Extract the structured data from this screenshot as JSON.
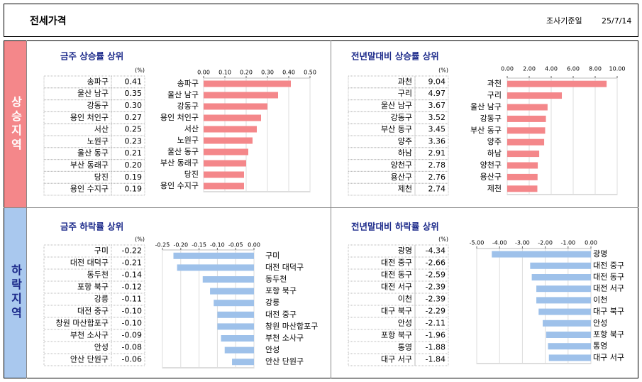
{
  "header": {
    "title": "전세가격",
    "date_label": "조사기준일",
    "date": "25/7/14"
  },
  "sections": [
    "상승지역",
    "하락지역"
  ],
  "chart_data": [
    {
      "type": "bar",
      "title": "금주 상승률 상위",
      "unit": "(%)",
      "color": "#f4878a",
      "categories": [
        "송파구",
        "울산 남구",
        "강동구",
        "용인 처인구",
        "서산",
        "노원구",
        "울산 동구",
        "부산 동래구",
        "당진",
        "용인 수지구"
      ],
      "values": [
        0.41,
        0.35,
        0.3,
        0.27,
        0.25,
        0.23,
        0.21,
        0.2,
        0.19,
        0.19
      ],
      "value_labels": [
        "0.41",
        "0.35",
        "0.30",
        "0.27",
        "0.25",
        "0.23",
        "0.21",
        "0.20",
        "0.19",
        "0.19"
      ],
      "xlim": [
        0,
        0.5
      ],
      "xticks": [
        {
          "value": 0,
          "label": "0.00"
        },
        {
          "value": 0.1,
          "label": "0.10"
        },
        {
          "value": 0.2,
          "label": "0.20"
        },
        {
          "value": 0.3,
          "label": "0.30"
        },
        {
          "value": 0.4,
          "label": "0.40"
        },
        {
          "value": 0.5,
          "label": "0.50"
        }
      ],
      "grid": true
    },
    {
      "type": "bar",
      "title": "전년말대비 상승률 상위",
      "unit": "(%)",
      "color": "#f4878a",
      "categories": [
        "과천",
        "구리",
        "울산 남구",
        "강동구",
        "부산 동구",
        "양주",
        "하남",
        "양천구",
        "용산구",
        "제천"
      ],
      "values": [
        9.04,
        4.97,
        3.67,
        3.52,
        3.45,
        3.36,
        2.91,
        2.78,
        2.76,
        2.74
      ],
      "value_labels": [
        "9.04",
        "4.97",
        "3.67",
        "3.52",
        "3.45",
        "3.36",
        "2.91",
        "2.78",
        "2.76",
        "2.74"
      ],
      "xlim": [
        0,
        10
      ],
      "xticks": [
        {
          "value": 0,
          "label": "0.00"
        },
        {
          "value": 2,
          "label": "2.00"
        },
        {
          "value": 4,
          "label": "4.00"
        },
        {
          "value": 6,
          "label": "6.00"
        },
        {
          "value": 8,
          "label": "8.00"
        },
        {
          "value": 10,
          "label": "10.00"
        }
      ],
      "grid": true
    },
    {
      "type": "bar",
      "title": "금주 하락률 상위",
      "unit": "(%)",
      "color": "#9ec1ea",
      "categories": [
        "구미",
        "대전 대덕구",
        "동두천",
        "포항 북구",
        "강릉",
        "대전 중구",
        "창원 마산합포구",
        "부천 소사구",
        "안성",
        "안산 단원구"
      ],
      "values": [
        -0.22,
        -0.21,
        -0.14,
        -0.12,
        -0.11,
        -0.1,
        -0.1,
        -0.09,
        -0.08,
        -0.06
      ],
      "value_labels": [
        "-0.22",
        "-0.21",
        "-0.14",
        "-0.12",
        "-0.11",
        "-0.10",
        "-0.10",
        "-0.09",
        "-0.08",
        "-0.06"
      ],
      "xlim": [
        -0.25,
        0
      ],
      "xticks": [
        -0.25,
        {
          "value": -0.2,
          "label": "-0.20"
        },
        -0.15,
        {
          "value": -0.1,
          "label": "-0.10"
        },
        -0.05,
        {
          "value": 0,
          "label": "0.00"
        }
      ],
      "grid": true
    },
    {
      "type": "bar",
      "title": "전년말대비 하락률 상위",
      "unit": "(%)",
      "color": "#9ec1ea",
      "categories": [
        "광명",
        "대전 중구",
        "대전 동구",
        "대전 서구",
        "이천",
        "대구 북구",
        "안성",
        "포항 북구",
        "통영",
        "대구 서구"
      ],
      "values": [
        -4.34,
        -2.66,
        -2.59,
        -2.39,
        -2.39,
        -2.29,
        -2.11,
        -1.96,
        -1.88,
        -1.84
      ],
      "value_labels": [
        "-4.34",
        "-2.66",
        "-2.59",
        "-2.39",
        "-2.39",
        "-2.29",
        "-2.11",
        "-1.96",
        "-1.88",
        "-1.84"
      ],
      "xlim": [
        -5,
        0
      ],
      "xticks": [
        {
          "value": -5,
          "label": "-5.00"
        },
        {
          "value": -4,
          "label": "-4.00"
        },
        {
          "value": -3,
          "label": "-3.00"
        },
        {
          "value": -2,
          "label": "-2.00"
        },
        {
          "value": -1,
          "label": "-1.00"
        },
        {
          "value": 0,
          "label": "0.00"
        }
      ],
      "grid": true
    }
  ]
}
